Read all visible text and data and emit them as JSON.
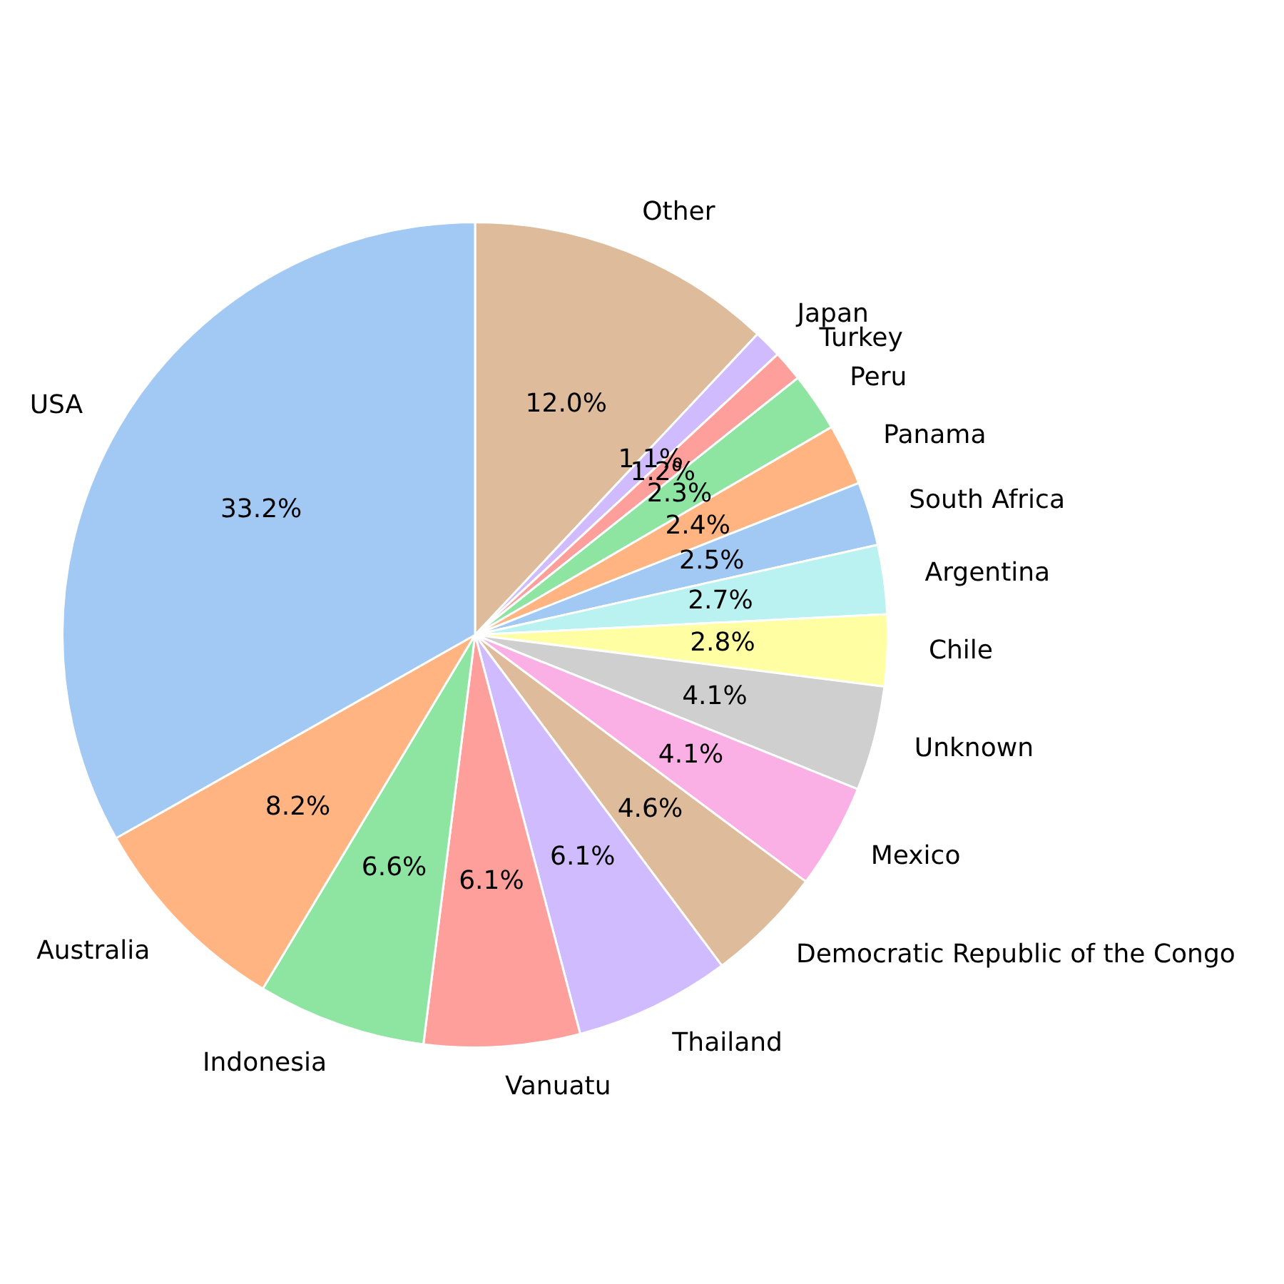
{
  "chart_data": {
    "type": "pie",
    "categories": [
      "USA",
      "Australia",
      "Indonesia",
      "Vanuatu",
      "Thailand",
      "Democratic Republic of the Congo",
      "Mexico",
      "Unknown",
      "Chile",
      "Argentina",
      "South Africa",
      "Panama",
      "Peru",
      "Turkey",
      "Japan",
      "Other"
    ],
    "values": [
      33.2,
      8.2,
      6.6,
      6.1,
      6.1,
      4.6,
      4.1,
      4.1,
      2.8,
      2.7,
      2.5,
      2.4,
      2.3,
      1.2,
      1.1,
      12.0
    ],
    "value_labels": [
      "33.2%",
      "8.2%",
      "6.6%",
      "6.1%",
      "6.1%",
      "4.6%",
      "4.1%",
      "4.1%",
      "2.8%",
      "2.7%",
      "2.5%",
      "2.4%",
      "2.3%",
      "1.2%",
      "1.1%",
      "12.0%"
    ],
    "colors": [
      "#a1c9f4",
      "#ffb482",
      "#8de5a1",
      "#ff9f9b",
      "#d0bbff",
      "#debb9b",
      "#fab0e4",
      "#cfcfcf",
      "#fffea3",
      "#b9f2f0",
      "#a1c9f4",
      "#ffb482",
      "#8de5a1",
      "#ff9f9b",
      "#d0bbff",
      "#debb9b"
    ]
  }
}
